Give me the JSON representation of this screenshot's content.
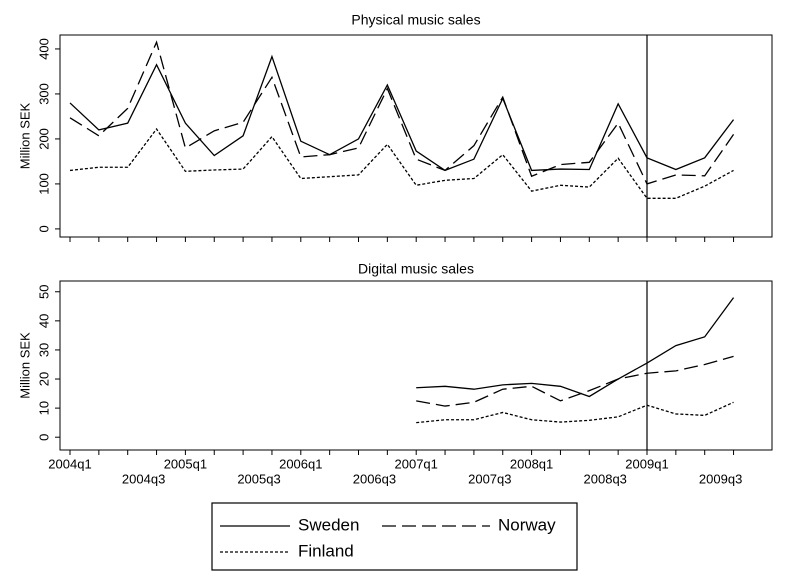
{
  "chart_data": [
    {
      "type": "line",
      "title": "Physical music sales",
      "ylabel": "Million SEK",
      "ylim": [
        -18,
        431
      ],
      "yticks": [
        0,
        100,
        200,
        300,
        400
      ],
      "vline": 20,
      "series": [
        {
          "name": "Sweden",
          "color": "#000000",
          "dash": "none",
          "values": [
            280,
            220,
            235,
            365,
            235,
            163,
            207,
            383,
            195,
            165,
            200,
            320,
            173,
            130,
            155,
            290,
            130,
            133,
            132,
            278,
            158,
            132,
            158,
            243
          ]
        },
        {
          "name": "Norway",
          "color": "#000000",
          "dash": "14,6",
          "values": [
            247,
            207,
            268,
            415,
            180,
            218,
            237,
            337,
            160,
            165,
            180,
            312,
            155,
            130,
            185,
            293,
            117,
            143,
            148,
            235,
            100,
            120,
            118,
            210
          ]
        },
        {
          "name": "Finland",
          "color": "#000000",
          "dash": "3,2",
          "values": [
            130,
            137,
            137,
            222,
            128,
            131,
            133,
            205,
            112,
            116,
            120,
            188,
            97,
            108,
            112,
            165,
            84,
            97,
            93,
            157,
            68,
            68,
            95,
            130
          ]
        }
      ]
    },
    {
      "type": "line",
      "title": "Digital music sales",
      "ylabel": "Million SEK",
      "ylim": [
        -4.4,
        53.7
      ],
      "yticks": [
        0,
        10,
        20,
        30,
        40,
        50
      ],
      "vline": 20,
      "categories": [
        "2004q1",
        null,
        "2004q3",
        null,
        "2005q1",
        null,
        "2005q3",
        null,
        "2006q1",
        null,
        "2006q3",
        null,
        "2007q1",
        null,
        "2007q3",
        null,
        "2008q1",
        null,
        "2008q3",
        null,
        "2009q1",
        null,
        "2009q3",
        null
      ],
      "series": [
        {
          "color": "#000000",
          "dash": "none",
          "values": [
            null,
            null,
            null,
            null,
            null,
            null,
            null,
            null,
            null,
            null,
            null,
            null,
            17,
            17.5,
            16.5,
            18,
            18.5,
            17.5,
            14,
            20,
            25.5,
            31.5,
            34.5,
            48
          ]
        },
        {
          "color": "#000000",
          "dash": "14,6",
          "values": [
            null,
            null,
            null,
            null,
            null,
            null,
            null,
            null,
            null,
            null,
            null,
            null,
            12.5,
            10.7,
            12,
            16.5,
            17.5,
            12.5,
            16,
            20,
            22,
            22.8,
            25,
            27.8
          ]
        },
        {
          "color": "#000000",
          "dash": "3,2",
          "values": [
            null,
            null,
            null,
            null,
            null,
            null,
            null,
            null,
            null,
            null,
            null,
            null,
            5,
            6,
            6,
            8.5,
            6,
            5.2,
            5.8,
            7,
            11,
            8,
            7.5,
            12
          ]
        }
      ]
    }
  ]
}
